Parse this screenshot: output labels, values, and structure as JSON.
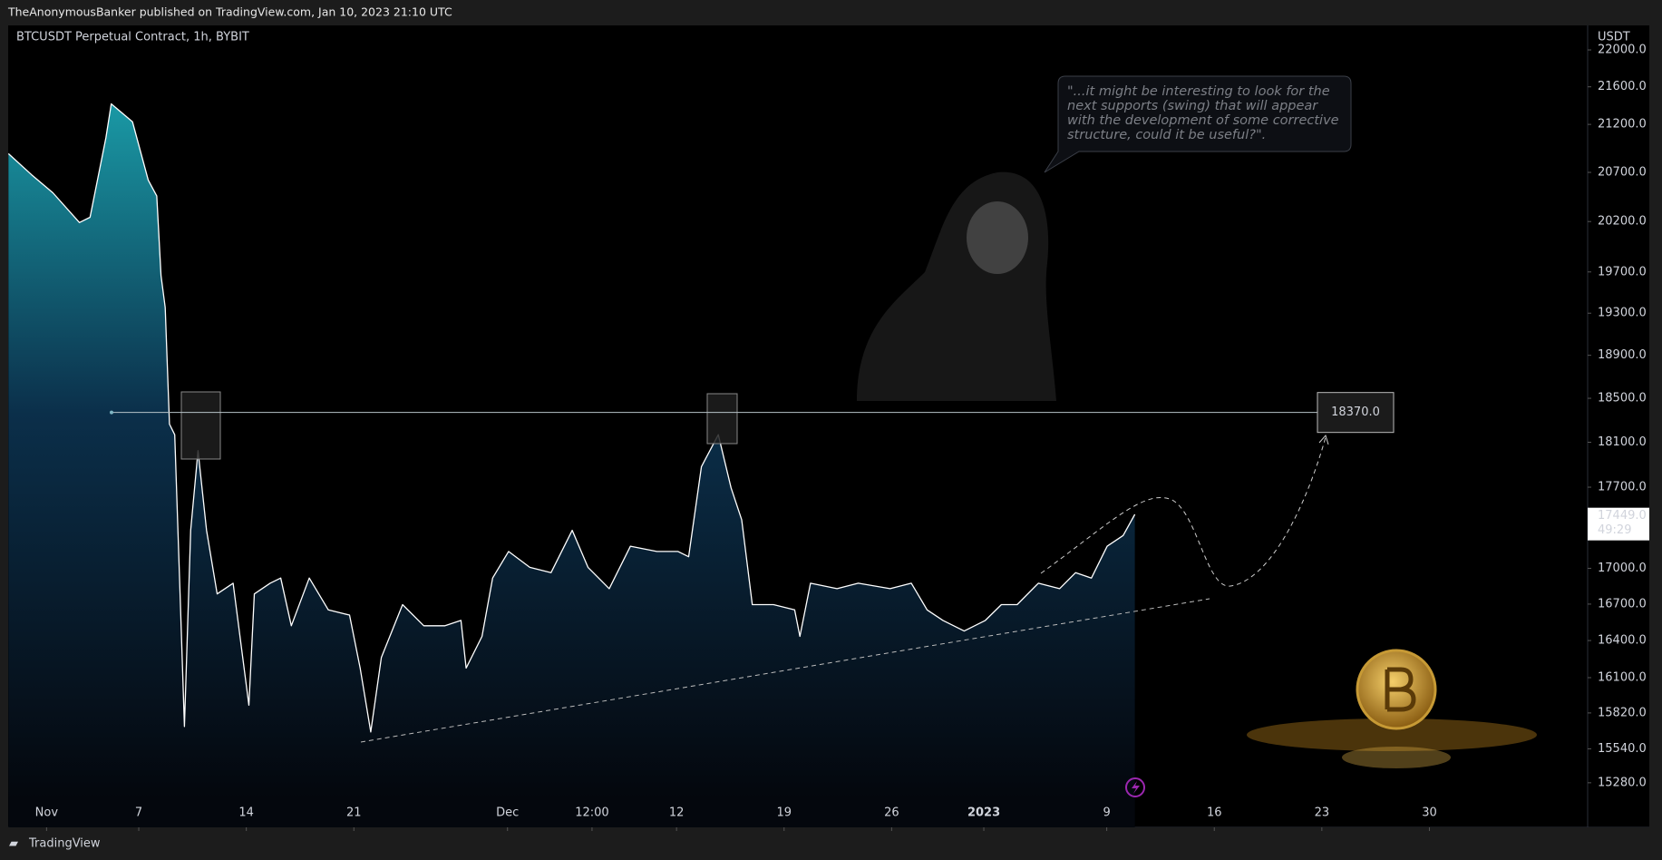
{
  "header": "TheAnonymousBanker published on TradingView.com, Jan 10, 2023 21:10 UTC",
  "footer": "TradingView",
  "chart_data": {
    "type": "area",
    "title": "BTCUSDT Perpetual Contract, 1h, BYBIT",
    "y_unit": "USDT",
    "color": "#ffffff",
    "x": [
      -2.48,
      -0.97,
      0.41,
      2.14,
      2.83,
      3.86,
      4.21,
      5.59,
      6.62,
      7.17,
      7.45,
      7.72,
      8.0,
      8.34,
      8.69,
      8.97,
      9.38,
      9.86,
      10.41,
      11.1,
      12.14,
      13.17,
      13.52,
      14.55,
      15.24,
      15.93,
      17.1,
      18.34,
      19.72,
      20.41,
      21.1,
      21.79,
      23.17,
      24.55,
      25.93,
      26.97,
      27.31,
      28.34,
      29.03,
      30.07,
      31.45,
      32.83,
      34.21,
      35.24,
      36.62,
      38.0,
      39.72,
      41.1,
      41.79,
      42.62,
      43.72,
      44.55,
      45.24,
      45.93,
      47.31,
      48.69,
      49.03,
      49.72,
      51.45,
      52.83,
      54.9,
      56.28,
      57.31,
      58.34,
      59.72,
      61.1,
      62.14,
      63.17,
      64.55,
      65.93,
      66.97,
      68.0,
      69.03,
      70.07,
      70.83
    ],
    "values": [
      20894,
      20675,
      20491,
      20190,
      20243,
      21059,
      21418,
      21228,
      20620,
      20458,
      19664,
      19355,
      18264,
      18168,
      16785,
      15714,
      17324,
      18024,
      17324,
      16785,
      16874,
      15881,
      16785,
      16874,
      16918,
      16521,
      16918,
      16652,
      16609,
      16177,
      15671,
      16263,
      16696,
      16521,
      16521,
      16565,
      16177,
      16434,
      16918,
      17143,
      17008,
      16963,
      17324,
      17008,
      16829,
      17188,
      17143,
      17143,
      17098,
      17882,
      18168,
      17694,
      17416,
      16696,
      16696,
      16652,
      16434,
      16874,
      16829,
      16874,
      16829,
      16874,
      16652,
      16565,
      16478,
      16565,
      16696,
      16696,
      16874,
      16829,
      16963,
      16918,
      17188,
      17280,
      17462
    ],
    "xlim": [
      -2.5,
      100.3
    ],
    "xticks": [
      {
        "value": 0,
        "label": "Nov"
      },
      {
        "value": 6,
        "label": "7"
      },
      {
        "value": 13,
        "label": "14"
      },
      {
        "value": 20,
        "label": "21"
      },
      {
        "value": 30,
        "label": "Dec"
      },
      {
        "value": 35.5,
        "label": "12:00"
      },
      {
        "value": 41,
        "label": "12"
      },
      {
        "value": 48,
        "label": "19"
      },
      {
        "value": 55,
        "label": "26"
      },
      {
        "value": 61,
        "label": "2023"
      },
      {
        "value": 69,
        "label": "9"
      },
      {
        "value": 76,
        "label": "16"
      },
      {
        "value": 83,
        "label": "23"
      },
      {
        "value": 90,
        "label": "30"
      }
    ],
    "ylim": [
      14945,
      22270
    ],
    "log_scale": true,
    "grid": false,
    "yticks": [
      {
        "value": 22000,
        "label": "22000.0"
      },
      {
        "value": 21600,
        "label": "21600.0"
      },
      {
        "value": 21200,
        "label": "21200.0"
      },
      {
        "value": 20700,
        "label": "20700.0"
      },
      {
        "value": 20200,
        "label": "20200.0"
      },
      {
        "value": 19700,
        "label": "19700.0"
      },
      {
        "value": 19300,
        "label": "19300.0"
      },
      {
        "value": 18900,
        "label": "18900.0"
      },
      {
        "value": 18500,
        "label": "18500.0"
      },
      {
        "value": 18100,
        "label": "18100.0"
      },
      {
        "value": 17700,
        "label": "17700.0"
      },
      {
        "value": 17000,
        "label": "17000.0"
      },
      {
        "value": 16700,
        "label": "16700.0"
      },
      {
        "value": 16400,
        "label": "16400.0"
      },
      {
        "value": 16100,
        "label": "16100.0"
      },
      {
        "value": 15820,
        "label": "15820.0"
      },
      {
        "value": 15540,
        "label": "15540.0"
      },
      {
        "value": 15280,
        "label": "15280.0"
      }
    ],
    "hline": {
      "value": 18370,
      "label": "18370.0"
    },
    "last_price": {
      "value": 17449,
      "label": "17449.0",
      "countdown": "49:29"
    },
    "annotation": [
      "\"...it might be interesting to look for the",
      "next supports (swing) that will appear",
      "with the development of some corrective",
      "structure, could it be useful?\"."
    ]
  }
}
